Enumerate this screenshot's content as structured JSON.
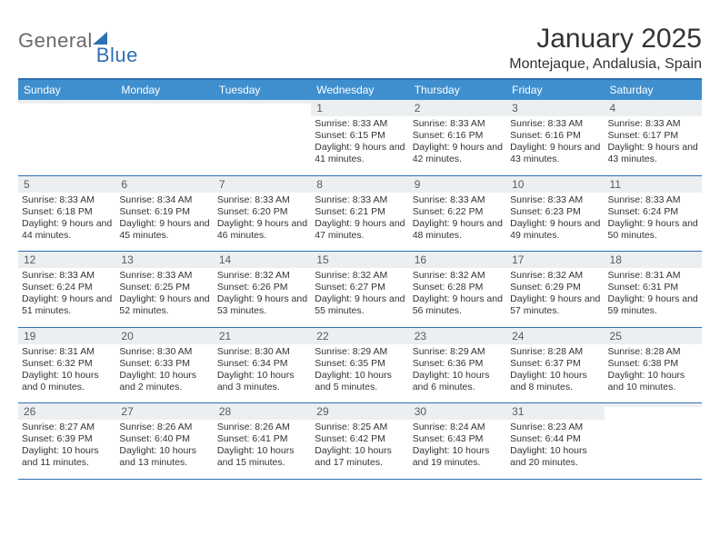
{
  "brand": {
    "part1": "General",
    "part2": "Blue"
  },
  "title": "January 2025",
  "location": "Montejaque, Andalusia, Spain",
  "colors": {
    "header_bg": "#3f8fcf",
    "header_border": "#2f6fb3",
    "daynum_bg": "#eceff1",
    "text": "#333333",
    "brand_gray": "#6a6a6a",
    "brand_blue": "#2f6fb3"
  },
  "days_of_week": [
    "Sunday",
    "Monday",
    "Tuesday",
    "Wednesday",
    "Thursday",
    "Friday",
    "Saturday"
  ],
  "weeks": [
    [
      {
        "n": "",
        "sr": "",
        "ss": "",
        "dl": ""
      },
      {
        "n": "",
        "sr": "",
        "ss": "",
        "dl": ""
      },
      {
        "n": "",
        "sr": "",
        "ss": "",
        "dl": ""
      },
      {
        "n": "1",
        "sr": "Sunrise: 8:33 AM",
        "ss": "Sunset: 6:15 PM",
        "dl": "Daylight: 9 hours and 41 minutes."
      },
      {
        "n": "2",
        "sr": "Sunrise: 8:33 AM",
        "ss": "Sunset: 6:16 PM",
        "dl": "Daylight: 9 hours and 42 minutes."
      },
      {
        "n": "3",
        "sr": "Sunrise: 8:33 AM",
        "ss": "Sunset: 6:16 PM",
        "dl": "Daylight: 9 hours and 43 minutes."
      },
      {
        "n": "4",
        "sr": "Sunrise: 8:33 AM",
        "ss": "Sunset: 6:17 PM",
        "dl": "Daylight: 9 hours and 43 minutes."
      }
    ],
    [
      {
        "n": "5",
        "sr": "Sunrise: 8:33 AM",
        "ss": "Sunset: 6:18 PM",
        "dl": "Daylight: 9 hours and 44 minutes."
      },
      {
        "n": "6",
        "sr": "Sunrise: 8:34 AM",
        "ss": "Sunset: 6:19 PM",
        "dl": "Daylight: 9 hours and 45 minutes."
      },
      {
        "n": "7",
        "sr": "Sunrise: 8:33 AM",
        "ss": "Sunset: 6:20 PM",
        "dl": "Daylight: 9 hours and 46 minutes."
      },
      {
        "n": "8",
        "sr": "Sunrise: 8:33 AM",
        "ss": "Sunset: 6:21 PM",
        "dl": "Daylight: 9 hours and 47 minutes."
      },
      {
        "n": "9",
        "sr": "Sunrise: 8:33 AM",
        "ss": "Sunset: 6:22 PM",
        "dl": "Daylight: 9 hours and 48 minutes."
      },
      {
        "n": "10",
        "sr": "Sunrise: 8:33 AM",
        "ss": "Sunset: 6:23 PM",
        "dl": "Daylight: 9 hours and 49 minutes."
      },
      {
        "n": "11",
        "sr": "Sunrise: 8:33 AM",
        "ss": "Sunset: 6:24 PM",
        "dl": "Daylight: 9 hours and 50 minutes."
      }
    ],
    [
      {
        "n": "12",
        "sr": "Sunrise: 8:33 AM",
        "ss": "Sunset: 6:24 PM",
        "dl": "Daylight: 9 hours and 51 minutes."
      },
      {
        "n": "13",
        "sr": "Sunrise: 8:33 AM",
        "ss": "Sunset: 6:25 PM",
        "dl": "Daylight: 9 hours and 52 minutes."
      },
      {
        "n": "14",
        "sr": "Sunrise: 8:32 AM",
        "ss": "Sunset: 6:26 PM",
        "dl": "Daylight: 9 hours and 53 minutes."
      },
      {
        "n": "15",
        "sr": "Sunrise: 8:32 AM",
        "ss": "Sunset: 6:27 PM",
        "dl": "Daylight: 9 hours and 55 minutes."
      },
      {
        "n": "16",
        "sr": "Sunrise: 8:32 AM",
        "ss": "Sunset: 6:28 PM",
        "dl": "Daylight: 9 hours and 56 minutes."
      },
      {
        "n": "17",
        "sr": "Sunrise: 8:32 AM",
        "ss": "Sunset: 6:29 PM",
        "dl": "Daylight: 9 hours and 57 minutes."
      },
      {
        "n": "18",
        "sr": "Sunrise: 8:31 AM",
        "ss": "Sunset: 6:31 PM",
        "dl": "Daylight: 9 hours and 59 minutes."
      }
    ],
    [
      {
        "n": "19",
        "sr": "Sunrise: 8:31 AM",
        "ss": "Sunset: 6:32 PM",
        "dl": "Daylight: 10 hours and 0 minutes."
      },
      {
        "n": "20",
        "sr": "Sunrise: 8:30 AM",
        "ss": "Sunset: 6:33 PM",
        "dl": "Daylight: 10 hours and 2 minutes."
      },
      {
        "n": "21",
        "sr": "Sunrise: 8:30 AM",
        "ss": "Sunset: 6:34 PM",
        "dl": "Daylight: 10 hours and 3 minutes."
      },
      {
        "n": "22",
        "sr": "Sunrise: 8:29 AM",
        "ss": "Sunset: 6:35 PM",
        "dl": "Daylight: 10 hours and 5 minutes."
      },
      {
        "n": "23",
        "sr": "Sunrise: 8:29 AM",
        "ss": "Sunset: 6:36 PM",
        "dl": "Daylight: 10 hours and 6 minutes."
      },
      {
        "n": "24",
        "sr": "Sunrise: 8:28 AM",
        "ss": "Sunset: 6:37 PM",
        "dl": "Daylight: 10 hours and 8 minutes."
      },
      {
        "n": "25",
        "sr": "Sunrise: 8:28 AM",
        "ss": "Sunset: 6:38 PM",
        "dl": "Daylight: 10 hours and 10 minutes."
      }
    ],
    [
      {
        "n": "26",
        "sr": "Sunrise: 8:27 AM",
        "ss": "Sunset: 6:39 PM",
        "dl": "Daylight: 10 hours and 11 minutes."
      },
      {
        "n": "27",
        "sr": "Sunrise: 8:26 AM",
        "ss": "Sunset: 6:40 PM",
        "dl": "Daylight: 10 hours and 13 minutes."
      },
      {
        "n": "28",
        "sr": "Sunrise: 8:26 AM",
        "ss": "Sunset: 6:41 PM",
        "dl": "Daylight: 10 hours and 15 minutes."
      },
      {
        "n": "29",
        "sr": "Sunrise: 8:25 AM",
        "ss": "Sunset: 6:42 PM",
        "dl": "Daylight: 10 hours and 17 minutes."
      },
      {
        "n": "30",
        "sr": "Sunrise: 8:24 AM",
        "ss": "Sunset: 6:43 PM",
        "dl": "Daylight: 10 hours and 19 minutes."
      },
      {
        "n": "31",
        "sr": "Sunrise: 8:23 AM",
        "ss": "Sunset: 6:44 PM",
        "dl": "Daylight: 10 hours and 20 minutes."
      },
      {
        "n": "",
        "sr": "",
        "ss": "",
        "dl": ""
      }
    ]
  ]
}
